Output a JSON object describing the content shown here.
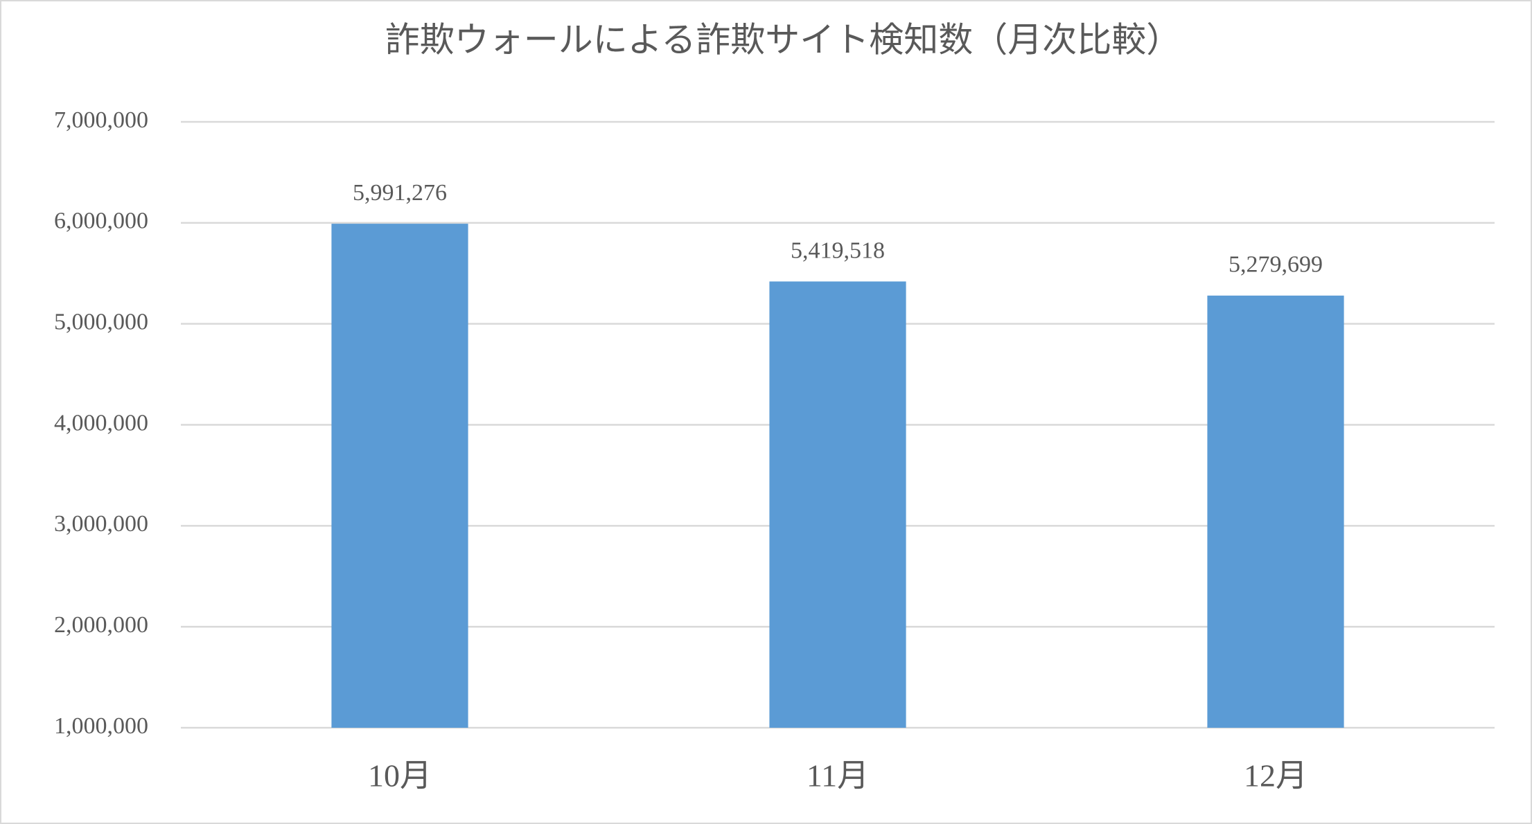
{
  "chart_data": {
    "type": "bar",
    "title": "詐欺ウォールによる詐欺サイト検知数（月次比較）",
    "categories": [
      "10月",
      "11月",
      "12月"
    ],
    "values": [
      5991276,
      5419518,
      5279699
    ],
    "value_labels": [
      "5,991,276",
      "5,419,518",
      "5,279,699"
    ],
    "color": "#5b9bd5",
    "ylim": [
      1000000,
      7000000
    ],
    "yticks": [
      {
        "value": 1000000,
        "label": "1,000,000"
      },
      {
        "value": 2000000,
        "label": "2,000,000"
      },
      {
        "value": 3000000,
        "label": "3,000,000"
      },
      {
        "value": 4000000,
        "label": "4,000,000"
      },
      {
        "value": 5000000,
        "label": "5,000,000"
      },
      {
        "value": 6000000,
        "label": "6,000,000"
      },
      {
        "value": 7000000,
        "label": "7,000,000"
      }
    ],
    "grid": true
  }
}
